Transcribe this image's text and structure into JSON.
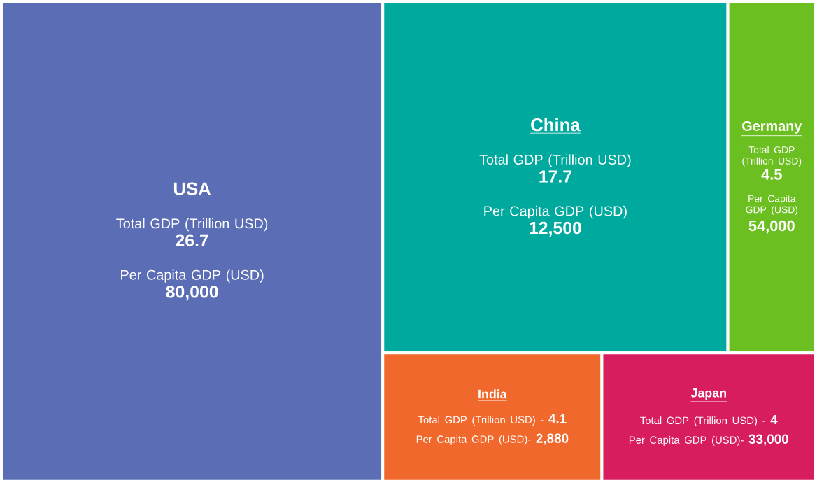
{
  "chart_data": {
    "type": "other",
    "categories": [
      "USA",
      "China",
      "Germany",
      "India",
      "Japan"
    ],
    "annotations": [
      "-"
    ],
    "series": [
      {
        "name": "Total GDP (Trillion USD)",
        "values": [
          26.7,
          17.7,
          4.5,
          4.1,
          4
        ],
        "value_labels": [
          "26.7",
          "17.7",
          "4.5",
          "4.1",
          "4"
        ],
        "colors": [
          "#5b6db4",
          "#00a99d",
          "#6cbf21",
          "#f0682c",
          "#d81d5f"
        ]
      },
      {
        "name": "Per Capita GDP (USD)",
        "values": [
          80000,
          12500,
          54000,
          2880,
          33000
        ],
        "value_labels": [
          "80,000",
          "12,500",
          "54,000",
          "2,880",
          "33,000"
        ]
      }
    ]
  }
}
